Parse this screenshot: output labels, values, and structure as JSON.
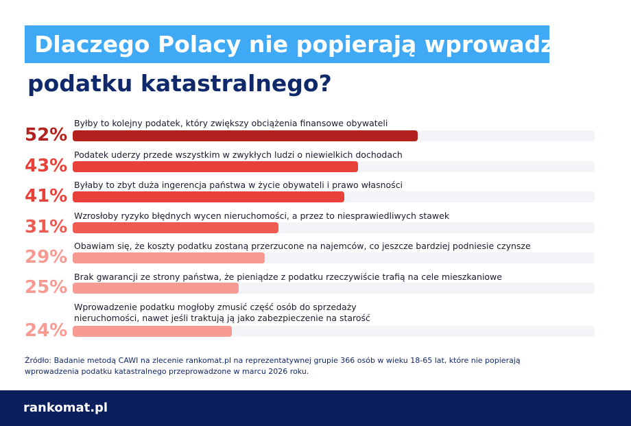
{
  "header": {
    "title_line1": "Dlaczego Polacy nie popierają wprowadzenia",
    "title_line2": "podatku katastralnego?"
  },
  "chart_data": {
    "type": "bar",
    "orientation": "horizontal",
    "xlim": [
      0,
      100
    ],
    "grid": false,
    "categories": [
      "Byłby to kolejny podatek, który zwiększy obciążenia finansowe obywateli",
      "Podatek uderzy przede wszystkim w zwykłych ludzi o niewielkich dochodach",
      "Byłaby to zbyt duża ingerencja państwa w życie obywateli i prawo własności",
      "Wzrosłoby ryzyko błędnych wycen nieruchomości, a przez to niesprawiedliwych stawek",
      "Obawiam się, że koszty podatku zostaną przerzucone na najemców, co jeszcze bardziej podniesie czynsze",
      "Brak gwarancji ze strony państwa, że pieniądze z podatku rzeczywiście trafią na cele mieszkaniowe",
      "Wprowadzenie podatku mogłoby zmusić część osób do sprzedaży nieruchomości, nawet jeśli traktują ją jako zabezpieczenie na starość"
    ],
    "values": [
      52,
      43,
      41,
      31,
      29,
      25,
      24
    ],
    "value_labels": [
      "52%",
      "43%",
      "41%",
      "31%",
      "29%",
      "25%",
      "24%"
    ],
    "colors": [
      "#b3221e",
      "#e8413a",
      "#e8413a",
      "#ee5a50",
      "#f79a92",
      "#f79a92",
      "#f79a92"
    ]
  },
  "source_text": "Źródło: Badanie metodą CAWI na zlecenie rankomat.pl na reprezentatywnej grupie 366 osób w wieku 18-65 lat, które nie popierają wprowadzenia podatku katastralnego przeprowadzone w marcu 2026 roku.",
  "footer": {
    "logo_text": "rankomat.pl"
  }
}
